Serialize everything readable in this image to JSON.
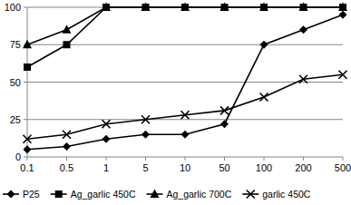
{
  "chart_data": {
    "type": "line",
    "categories": [
      "0.1",
      "0.5",
      "1",
      "5",
      "10",
      "50",
      "100",
      "200",
      "500"
    ],
    "series": [
      {
        "name": "P25",
        "color": "#000000",
        "marker": "diamond",
        "line_style": "solid",
        "values": [
          5,
          7,
          12,
          15,
          15,
          22,
          75,
          85,
          95
        ]
      },
      {
        "name": "Ag_garlic 450C",
        "color": "#000000",
        "marker": "square",
        "line_style": "solid",
        "values": [
          60,
          75,
          100,
          100,
          100,
          100,
          100,
          100,
          100
        ]
      },
      {
        "name": "Ag_garlic 700C",
        "color": "#000000",
        "marker": "triangle",
        "line_style": "solid",
        "values": [
          75,
          85,
          100,
          100,
          100,
          100,
          100,
          100,
          100
        ]
      },
      {
        "name": "garlic 450C",
        "color": "#000000",
        "marker": "x",
        "line_style": "solid",
        "values": [
          12,
          15,
          22,
          25,
          28,
          31,
          40,
          52,
          55
        ]
      }
    ],
    "ylim": [
      0,
      100
    ],
    "yticks": [
      0,
      25,
      50,
      75,
      100
    ],
    "grid": true,
    "legend": "bottom"
  }
}
